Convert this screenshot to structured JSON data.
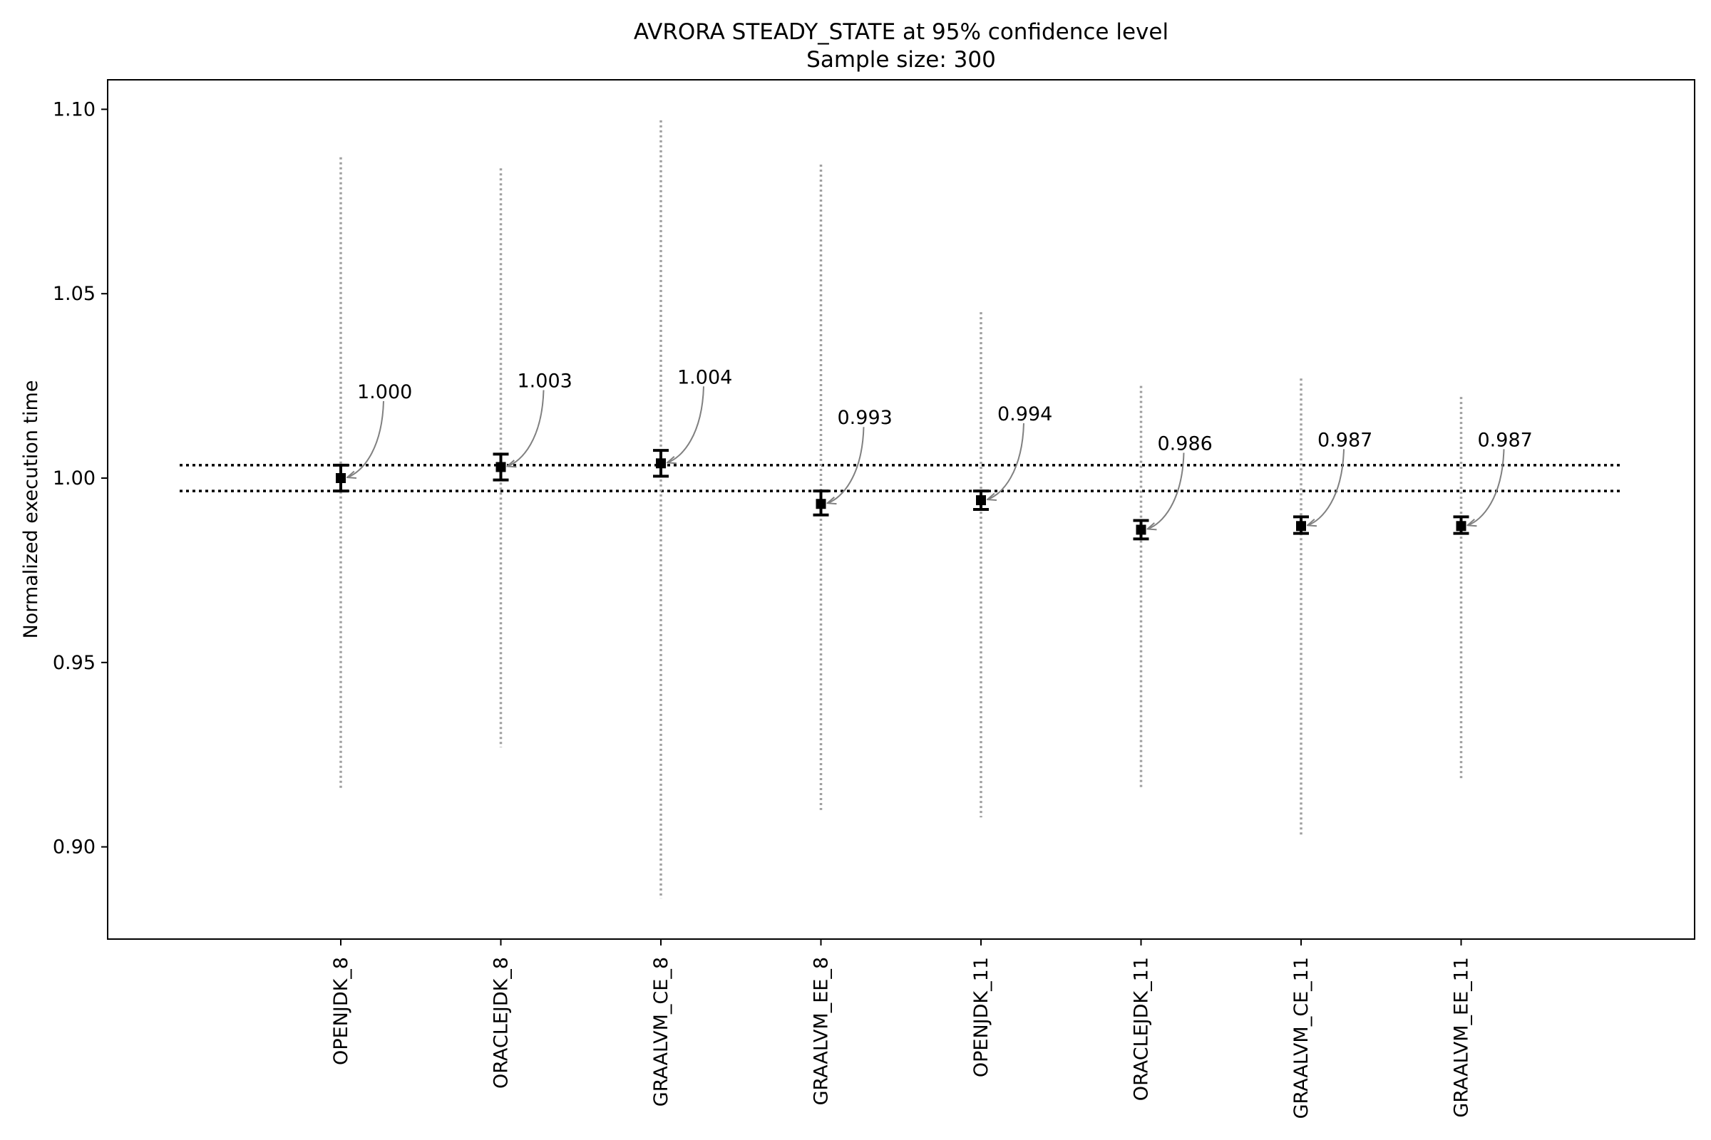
{
  "chart_data": {
    "type": "scatter",
    "title": "AVRORA STEADY_STATE at 95% confidence level",
    "subtitle": "Sample size: 300",
    "xlabel": "",
    "ylabel": "Normalized execution time",
    "ylim": [
      0.875,
      1.108
    ],
    "yticks": [
      "0.90",
      "0.95",
      "1.00",
      "1.05",
      "1.10"
    ],
    "grid": false,
    "categories": [
      "OPENJDK_8",
      "ORACLEJDK_8",
      "GRAALVM_CE_8",
      "GRAALVM_EE_8",
      "OPENJDK_11",
      "ORACLEJDK_11",
      "GRAALVM_CE_11",
      "GRAALVM_EE_11"
    ],
    "values": [
      1.0,
      1.003,
      1.004,
      0.993,
      0.994,
      0.986,
      0.987,
      0.987
    ],
    "value_labels": [
      "1.000",
      "1.003",
      "1.004",
      "0.993",
      "0.994",
      "0.986",
      "0.987",
      "0.987"
    ],
    "ci_low": [
      0.9965,
      0.9995,
      1.0005,
      0.99,
      0.9915,
      0.9835,
      0.985,
      0.985
    ],
    "ci_high": [
      1.0035,
      1.0065,
      1.0075,
      0.9965,
      0.9965,
      0.9885,
      0.9895,
      0.9895
    ],
    "range_low": [
      0.916,
      0.927,
      0.886,
      0.91,
      0.908,
      0.916,
      0.903,
      0.918
    ],
    "range_high": [
      1.087,
      1.084,
      1.097,
      1.085,
      1.045,
      1.025,
      1.027,
      1.022
    ],
    "reference_lines": [
      1.0035,
      0.9965
    ],
    "colors": {
      "marker": "#000000",
      "range_line": "#a0a0a0",
      "annotation_arrow": "#808080",
      "reference_line": "#000000"
    }
  }
}
